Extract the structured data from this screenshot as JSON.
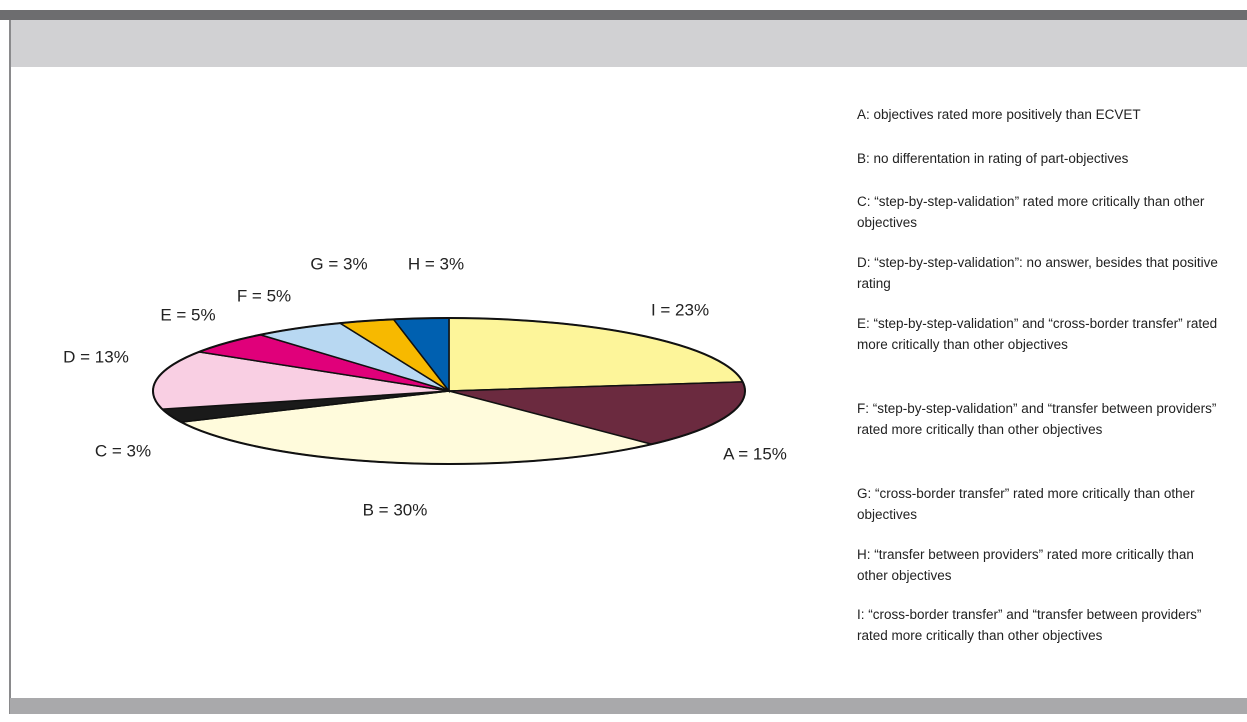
{
  "chart_data": {
    "type": "pie",
    "values": [
      23,
      15,
      30,
      3,
      13,
      5,
      5,
      3,
      3
    ],
    "value_labels": [
      "I = 23%",
      "A = 15%",
      "B = 30%",
      "C = 3%",
      "D = 13%",
      "E = 5%",
      "F = 5%",
      "G = 3%",
      "H = 3%"
    ],
    "colors": [
      "#fdf59a",
      "#6b2a3f",
      "#fffbdc",
      "#1a1a1a",
      "#f9cfe3",
      "#e0007a",
      "#b8d8f2",
      "#f7b900",
      "#0060b0"
    ],
    "legend": [
      "A: objectives rated more positively than ECVET",
      "B: no differentation in rating of part-objectives",
      "C: “step-by-step-validation” rated more critically than other objectives",
      "D: “step-by-step-validation”: no answer, besides that positive rating",
      "E: “step-by-step-validation” and “cross-border transfer” rated more critically than other objectives",
      "F: “step-by-step-validation” and “transfer between providers” rated more critically than other objectives",
      "G: “cross-border transfer” rated more critically than other objectives",
      "H: “transfer between providers” rated more critically than other objectives",
      "I: “cross-border transfer” and “transfer between providers” rated more critically than other objectives"
    ]
  }
}
